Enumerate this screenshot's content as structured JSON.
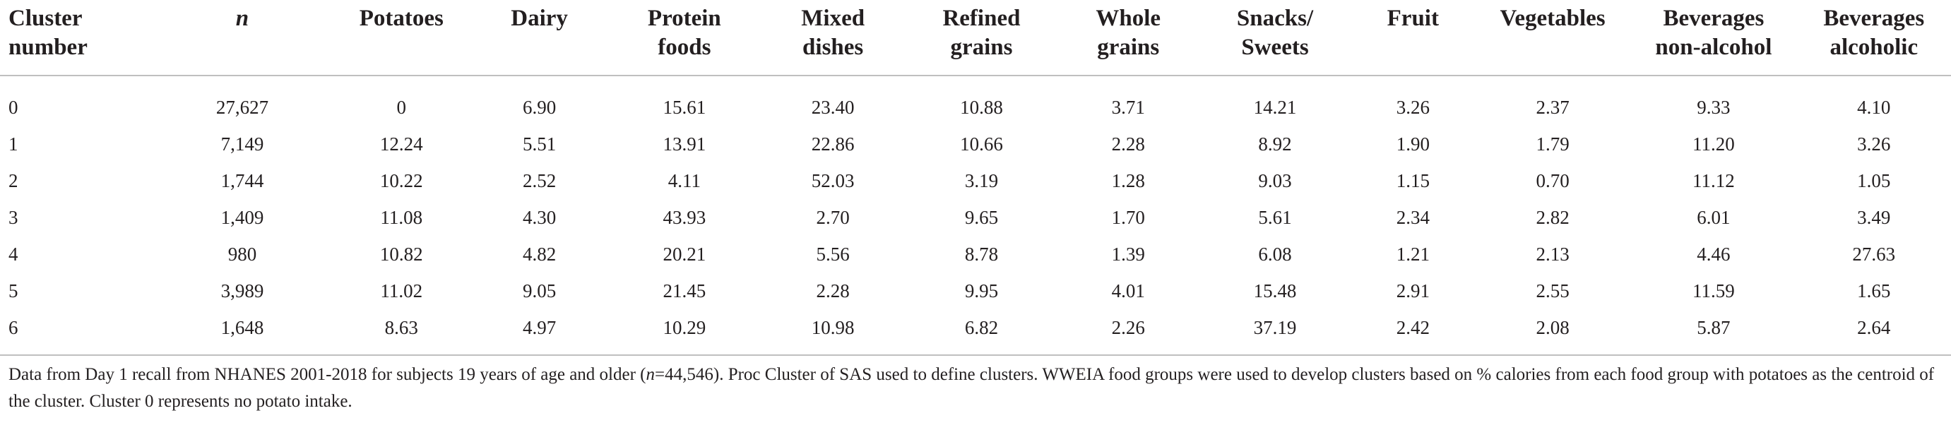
{
  "table": {
    "headers": [
      {
        "line1": "Cluster",
        "line2": "number"
      },
      {
        "line1": "n",
        "line2": ""
      },
      {
        "line1": "Potatoes",
        "line2": ""
      },
      {
        "line1": "Dairy",
        "line2": ""
      },
      {
        "line1": "Protein",
        "line2": "foods"
      },
      {
        "line1": "Mixed",
        "line2": "dishes"
      },
      {
        "line1": "Refined",
        "line2": "grains"
      },
      {
        "line1": "Whole",
        "line2": "grains"
      },
      {
        "line1": "Snacks/",
        "line2": "Sweets"
      },
      {
        "line1": "Fruit",
        "line2": ""
      },
      {
        "line1": "Vegetables",
        "line2": ""
      },
      {
        "line1": "Beverages",
        "line2": "non-alcohol"
      },
      {
        "line1": "Beverages",
        "line2": "alcoholic"
      }
    ],
    "rows": [
      [
        "0",
        "27,627",
        "0",
        "6.90",
        "15.61",
        "23.40",
        "10.88",
        "3.71",
        "14.21",
        "3.26",
        "2.37",
        "9.33",
        "4.10"
      ],
      [
        "1",
        "7,149",
        "12.24",
        "5.51",
        "13.91",
        "22.86",
        "10.66",
        "2.28",
        "8.92",
        "1.90",
        "1.79",
        "11.20",
        "3.26"
      ],
      [
        "2",
        "1,744",
        "10.22",
        "2.52",
        "4.11",
        "52.03",
        "3.19",
        "1.28",
        "9.03",
        "1.15",
        "0.70",
        "11.12",
        "1.05"
      ],
      [
        "3",
        "1,409",
        "11.08",
        "4.30",
        "43.93",
        "2.70",
        "9.65",
        "1.70",
        "5.61",
        "2.34",
        "2.82",
        "6.01",
        "3.49"
      ],
      [
        "4",
        "980",
        "10.82",
        "4.82",
        "20.21",
        "5.56",
        "8.78",
        "1.39",
        "6.08",
        "1.21",
        "2.13",
        "4.46",
        "27.63"
      ],
      [
        "5",
        "3,989",
        "11.02",
        "9.05",
        "21.45",
        "2.28",
        "9.95",
        "4.01",
        "15.48",
        "2.91",
        "2.55",
        "11.59",
        "1.65"
      ],
      [
        "6",
        "1,648",
        "8.63",
        "4.97",
        "10.29",
        "10.98",
        "6.82",
        "2.26",
        "37.19",
        "2.42",
        "2.08",
        "5.87",
        "2.64"
      ]
    ]
  },
  "footnote": {
    "part1": "Data from Day 1 recall from NHANES 2001-2018 for subjects 19 years of age and older (",
    "n_symbol": "n",
    "part2": "=44,546). Proc Cluster of SAS used to define clusters. WWEIA food groups were used to develop clusters based on % calories from each food group with potatoes as the centroid of the cluster. Cluster 0 represents no potato intake."
  }
}
